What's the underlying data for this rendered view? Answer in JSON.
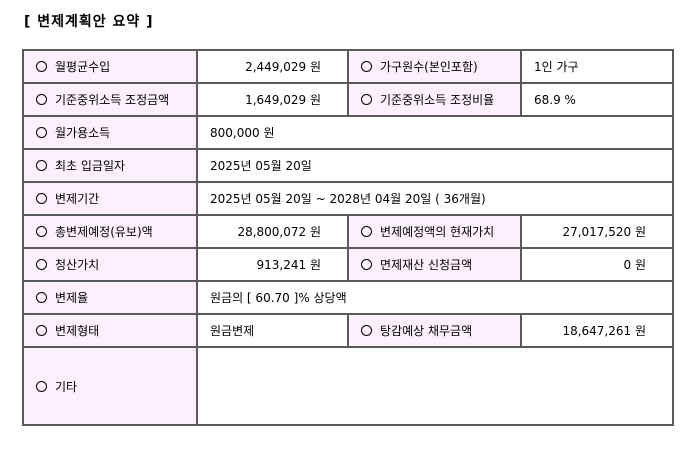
{
  "title": "[ 변제계획안 요약 ]",
  "rows": [
    {
      "l1": "월평균수입",
      "v1": "2,449,029 원",
      "l2": "가구원수(본인포함)",
      "v2": "1인 가구"
    },
    {
      "l1": "기준중위소득 조정금액",
      "v1": "1,649,029 원",
      "l2": "기준중위소득 조정비율",
      "v2": "68.9 %"
    },
    {
      "l1": "월가용소득",
      "v1": "800,000 원"
    },
    {
      "l1": "최초 입금일자",
      "v1": "2025년 05월 20일"
    },
    {
      "l1": "변제기간",
      "v1": "2025년 05월 20일 ~ 2028년 04월 20일 ( 36개월)"
    },
    {
      "l1": "총변제예정(유보)액",
      "v1": "28,800,072 원",
      "l2": "변제예정액의 현재가치",
      "v2": "27,017,520 원"
    },
    {
      "l1": "청산가치",
      "v1": "913,241 원",
      "l2": "면제재산 신청금액",
      "v2": "0 원"
    },
    {
      "l1": "변제율",
      "v1": "원금의 [ 60.70 ]% 상당액"
    },
    {
      "l1": "변제형태",
      "v1": "원금변제",
      "l2": "탕감예상 채무금액",
      "v2": "18,647,261 원"
    },
    {
      "l1": "기타",
      "v1": ""
    }
  ]
}
